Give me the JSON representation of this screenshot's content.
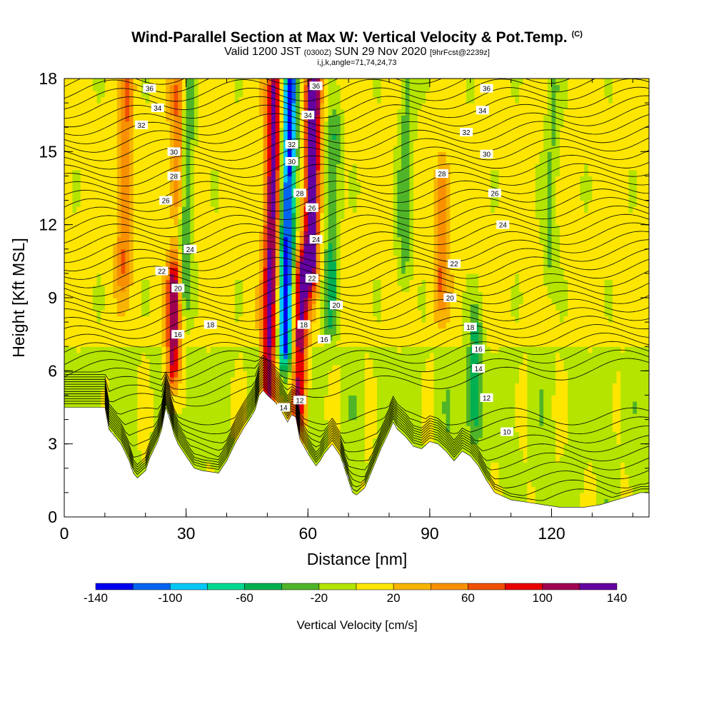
{
  "title": {
    "main": "Wind-Parallel Section at Max W: Vertical Velocity & Pot.Temp.",
    "copyright": "(C)",
    "valid_prefix": "Valid 1200 JST",
    "valid_utc": "(0300Z)",
    "valid_date": "SUN 29 Nov 2020",
    "forecast": "[9hrFcst@2239z]",
    "indices": "i,j,k,angle=71,74,24,73"
  },
  "chart_data": {
    "type": "heatmap",
    "xlabel": "Distance [nm]",
    "ylabel": "Height [Kft MSL]",
    "xlim": [
      0,
      144
    ],
    "ylim": [
      0,
      18
    ],
    "x_ticks": [
      0,
      30,
      60,
      90,
      120
    ],
    "y_ticks": [
      0,
      3,
      6,
      9,
      12,
      15,
      18
    ],
    "x_minor_step": 10,
    "y_minor_step": 1,
    "colorbar": {
      "label": "Vertical Velocity [cm/s]",
      "tick_labels": [
        "-140",
        "-100",
        "-60",
        "-20",
        "20",
        "60",
        "100",
        "140"
      ],
      "tick_values": [
        -140,
        -100,
        -60,
        -20,
        20,
        60,
        100,
        140
      ],
      "bin_edges": [
        -140,
        -120,
        -100,
        -80,
        -60,
        -40,
        -20,
        0,
        20,
        40,
        60,
        80,
        100,
        120,
        140
      ],
      "colors": [
        "#0000f0",
        "#0064f0",
        "#00c8f8",
        "#00d890",
        "#00b050",
        "#50b428",
        "#b4e400",
        "#fee600",
        "#f8b400",
        "#f89000",
        "#f05000",
        "#e80000",
        "#a00050",
        "#6400a0"
      ]
    },
    "terrain_profile": [
      [
        0,
        4.5
      ],
      [
        10,
        4.5
      ],
      [
        11,
        3.6
      ],
      [
        14,
        3.0
      ],
      [
        16,
        2.3
      ],
      [
        17,
        1.8
      ],
      [
        18,
        1.6
      ],
      [
        20,
        1.9
      ],
      [
        21,
        2.4
      ],
      [
        23,
        3.1
      ],
      [
        24,
        3.6
      ],
      [
        25,
        4.5
      ],
      [
        26,
        4.0
      ],
      [
        27,
        3.4
      ],
      [
        28,
        3.0
      ],
      [
        30,
        2.5
      ],
      [
        32,
        2.0
      ],
      [
        34,
        1.9
      ],
      [
        38,
        1.8
      ],
      [
        40,
        2.3
      ],
      [
        42,
        3.0
      ],
      [
        44,
        3.6
      ],
      [
        46,
        4.1
      ],
      [
        47,
        4.4
      ],
      [
        48,
        5.0
      ],
      [
        49,
        5.2
      ],
      [
        50,
        5.0
      ],
      [
        52,
        4.7
      ],
      [
        53,
        4.5
      ],
      [
        54,
        4.2
      ],
      [
        55,
        3.9
      ],
      [
        56,
        4.2
      ],
      [
        57,
        4.1
      ],
      [
        58,
        3.2
      ],
      [
        60,
        2.6
      ],
      [
        62,
        2.1
      ],
      [
        63,
        2.3
      ],
      [
        64,
        2.6
      ],
      [
        66,
        3.0
      ],
      [
        68,
        2.5
      ],
      [
        70,
        1.5
      ],
      [
        71,
        1.0
      ],
      [
        72,
        0.9
      ],
      [
        74,
        1.2
      ],
      [
        76,
        2.0
      ],
      [
        78,
        2.8
      ],
      [
        80,
        3.5
      ],
      [
        81,
        3.9
      ],
      [
        82,
        3.6
      ],
      [
        84,
        3.3
      ],
      [
        86,
        2.9
      ],
      [
        88,
        2.8
      ],
      [
        90,
        3.1
      ],
      [
        92,
        3.0
      ],
      [
        94,
        2.7
      ],
      [
        96,
        2.3
      ],
      [
        98,
        2.7
      ],
      [
        100,
        2.5
      ],
      [
        102,
        2.1
      ],
      [
        104,
        1.5
      ],
      [
        106,
        1.0
      ],
      [
        110,
        0.7
      ],
      [
        114,
        0.6
      ],
      [
        118,
        0.5
      ],
      [
        122,
        0.4
      ],
      [
        128,
        0.4
      ],
      [
        132,
        0.5
      ],
      [
        136,
        0.7
      ],
      [
        140,
        0.9
      ],
      [
        142,
        1.0
      ],
      [
        144,
        1.0
      ]
    ],
    "updraft_cores": [
      {
        "x": 15,
        "zmin": 10,
        "zmax": 18,
        "w": 50
      },
      {
        "x": 27,
        "zmin": 6,
        "zmax": 10,
        "w": 110
      },
      {
        "x": 28,
        "zmin": 13,
        "zmax": 18,
        "w": 60
      },
      {
        "x": 51,
        "zmin": 4,
        "zmax": 18,
        "w": 120
      },
      {
        "x": 58,
        "zmin": 4,
        "zmax": 10,
        "w": 110
      },
      {
        "x": 61,
        "zmin": 10,
        "zmax": 18,
        "w": 140
      },
      {
        "x": 93,
        "zmin": 9,
        "zmax": 14,
        "w": 50
      }
    ],
    "downdraft_cores": [
      {
        "x": 30,
        "zmin": 9,
        "zmax": 18,
        "w": -50
      },
      {
        "x": 55,
        "zmin": 7,
        "zmax": 18,
        "w": -140
      },
      {
        "x": 66,
        "zmin": 8,
        "zmax": 16,
        "w": -50
      },
      {
        "x": 84,
        "zmin": 10,
        "zmax": 18,
        "w": -40
      },
      {
        "x": 101,
        "zmin": 4,
        "zmax": 8,
        "w": -50
      },
      {
        "x": 120,
        "zmin": 10,
        "zmax": 18,
        "w": -30
      }
    ],
    "theta_contour_labels": [
      {
        "value": "36",
        "x": 21,
        "z": 17.6
      },
      {
        "value": "34",
        "x": 23,
        "z": 16.8
      },
      {
        "value": "32",
        "x": 19,
        "z": 16.1
      },
      {
        "value": "30",
        "x": 27,
        "z": 15.0
      },
      {
        "value": "28",
        "x": 27,
        "z": 14.0
      },
      {
        "value": "26",
        "x": 25,
        "z": 13.0
      },
      {
        "value": "24",
        "x": 31,
        "z": 11.0
      },
      {
        "value": "22",
        "x": 24,
        "z": 10.1
      },
      {
        "value": "20",
        "x": 28,
        "z": 9.4
      },
      {
        "value": "18",
        "x": 36,
        "z": 7.9
      },
      {
        "value": "16",
        "x": 28,
        "z": 7.5
      },
      {
        "value": "36",
        "x": 62,
        "z": 17.7
      },
      {
        "value": "34",
        "x": 60,
        "z": 16.5
      },
      {
        "value": "32",
        "x": 56,
        "z": 15.3
      },
      {
        "value": "30",
        "x": 56,
        "z": 14.6
      },
      {
        "value": "28",
        "x": 58,
        "z": 13.3
      },
      {
        "value": "26",
        "x": 61,
        "z": 12.7
      },
      {
        "value": "24",
        "x": 62,
        "z": 11.4
      },
      {
        "value": "22",
        "x": 61,
        "z": 9.8
      },
      {
        "value": "20",
        "x": 67,
        "z": 8.7
      },
      {
        "value": "18",
        "x": 59,
        "z": 7.9
      },
      {
        "value": "16",
        "x": 64,
        "z": 7.3
      },
      {
        "value": "14",
        "x": 54,
        "z": 4.5
      },
      {
        "value": "12",
        "x": 58,
        "z": 4.8
      },
      {
        "value": "36",
        "x": 104,
        "z": 17.6
      },
      {
        "value": "34",
        "x": 103,
        "z": 16.7
      },
      {
        "value": "32",
        "x": 99,
        "z": 15.8
      },
      {
        "value": "30",
        "x": 104,
        "z": 14.9
      },
      {
        "value": "28",
        "x": 93,
        "z": 14.1
      },
      {
        "value": "26",
        "x": 106,
        "z": 13.3
      },
      {
        "value": "24",
        "x": 108,
        "z": 12.0
      },
      {
        "value": "22",
        "x": 96,
        "z": 10.4
      },
      {
        "value": "20",
        "x": 95,
        "z": 9.0
      },
      {
        "value": "18",
        "x": 100,
        "z": 7.8
      },
      {
        "value": "16",
        "x": 102,
        "z": 6.9
      },
      {
        "value": "14",
        "x": 102,
        "z": 6.1
      },
      {
        "value": "12",
        "x": 104,
        "z": 4.9
      },
      {
        "value": "10",
        "x": 109,
        "z": 3.5
      }
    ]
  }
}
